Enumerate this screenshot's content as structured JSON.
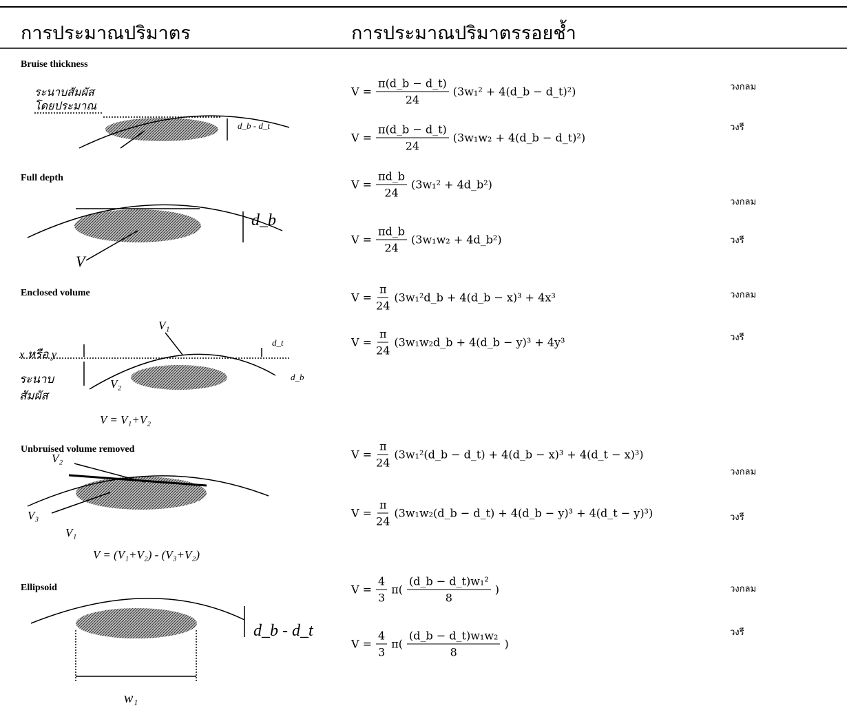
{
  "header": {
    "col1": "การประมาณปริมาตร",
    "col2": "การประมาณปริมาตรรอยช้ำ"
  },
  "rows": [
    {
      "method": "Bruise thickness",
      "labels": [
        "ระนาบสัมผัส",
        "โดยประมาณ",
        "d_b - d_t"
      ],
      "formulas": [
        {
          "parts": [
            "V =",
            {
              "num": "π(d_b − d_t)",
              "den": "24"
            },
            "(3w₁² + 4(d_b − d_t)²)"
          ],
          "shape": "วงกลม"
        },
        {
          "parts": [
            "V =",
            {
              "num": "π(d_b − d_t)",
              "den": "24"
            },
            "(3w₁w₂ + 4(d_b − d_t)²)"
          ],
          "shape": "วงรี"
        }
      ]
    },
    {
      "method": "Full depth",
      "labels": [
        "d_b",
        "V"
      ],
      "formulas": [
        {
          "parts": [
            "V =",
            {
              "num": "πd_b",
              "den": "24"
            },
            "(3w₁² + 4d_b²)"
          ],
          "shape": "วงกลม"
        },
        {
          "parts": [
            "V =",
            {
              "num": "πd_b",
              "den": "24"
            },
            "(3w₁w₂ + 4d_b²)"
          ],
          "shape": "วงรี"
        }
      ]
    },
    {
      "method": "Enclosed volume",
      "labels": [
        "V₁",
        "x หรือ y",
        "d_t",
        "ระนาบ",
        "สัมผัส",
        "V₂",
        "d_b",
        "V = V₁+V₂"
      ],
      "formulas": [
        {
          "parts": [
            "V =",
            {
              "num": "π",
              "den": "24"
            },
            "(3w₁²d_b + 4(d_b − x)³ + 4x³"
          ],
          "shape": "วงกลม"
        },
        {
          "parts": [
            "V =",
            {
              "num": "π",
              "den": "24"
            },
            "(3w₁w₂d_b + 4(d_b − y)³ + 4y³"
          ],
          "shape": "วงรี"
        }
      ]
    },
    {
      "method": "Unbruised volume removed",
      "labels": [
        "V₂",
        "V₃",
        "V₁",
        "V = (V₁+V₂) - (V₃+V₂)"
      ],
      "formulas": [
        {
          "parts": [
            "V =",
            {
              "num": "π",
              "den": "24"
            },
            "(3w₁²(d_b − d_t) + 4(d_b − x)³ + 4(d_t − x)³)"
          ],
          "shape": "วงกลม"
        },
        {
          "parts": [
            "V =",
            {
              "num": "π",
              "den": "24"
            },
            "(3w₁w₂(d_b − d_t) + 4(d_b − y)³ + 4(d_t − y)³)"
          ],
          "shape": "วงรี"
        }
      ]
    },
    {
      "method": "Ellipsoid",
      "labels": [
        "d_b - d_t",
        "w₁"
      ],
      "formulas": [
        {
          "parts": [
            "V =",
            {
              "num": "4",
              "den": "3"
            },
            "π(",
            {
              "num": "(d_b − d_t)w₁²",
              "den": "8"
            },
            ")"
          ],
          "shape": "วงกลม"
        },
        {
          "parts": [
            "V =",
            {
              "num": "4",
              "den": "3"
            },
            "π(",
            {
              "num": "(d_b − d_t)w₁w₂",
              "den": "8"
            },
            ")"
          ],
          "shape": "วงรี"
        }
      ]
    }
  ]
}
